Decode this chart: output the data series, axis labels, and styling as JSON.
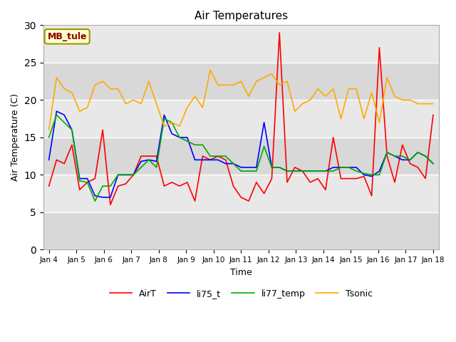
{
  "title": "Air Temperatures",
  "xlabel": "Time",
  "ylabel": "Air Temperature (C)",
  "ylim": [
    0,
    30
  ],
  "yticks": [
    0,
    5,
    10,
    15,
    20,
    25,
    30
  ],
  "annotation": "MB_tule",
  "plot_bg": "#e8e8e8",
  "fig_bg": "#ffffff",
  "x_labels": [
    "Jan 4",
    "Jan 5",
    "Jan 6",
    "Jan 7",
    "Jan 8",
    "Jan 9",
    "Jan 10",
    "Jan 11",
    "Jan 12",
    "Jan 13",
    "Jan 14",
    "Jan 15",
    "Jan 16",
    "Jan 17",
    "Jan 18"
  ],
  "AirT": [
    8.5,
    12.0,
    11.5,
    14.0,
    8.0,
    9.0,
    9.5,
    16.0,
    6.0,
    8.5,
    8.8,
    10.0,
    12.5,
    12.5,
    12.5,
    8.5,
    9.0,
    8.5,
    9.0,
    6.5,
    12.5,
    12.0,
    12.5,
    12.0,
    8.5,
    7.0,
    6.5,
    9.0,
    7.5,
    9.5,
    29.0,
    9.0,
    11.0,
    10.5,
    9.0,
    9.5,
    8.0,
    15.0,
    9.5,
    9.5,
    9.5,
    9.8,
    7.2,
    27.0,
    12.5,
    9.0,
    14.0,
    11.5,
    11.0,
    9.5,
    18.0
  ],
  "li75_t": [
    12.0,
    18.5,
    18.0,
    16.0,
    9.5,
    9.5,
    7.2,
    7.0,
    7.0,
    10.0,
    10.0,
    10.0,
    11.8,
    12.0,
    11.8,
    18.0,
    15.5,
    15.0,
    15.0,
    12.0,
    12.0,
    12.0,
    12.0,
    11.5,
    11.5,
    11.0,
    11.0,
    11.0,
    17.0,
    11.0,
    11.0,
    10.5,
    10.5,
    10.5,
    10.5,
    10.5,
    10.5,
    11.0,
    11.0,
    11.0,
    11.0,
    10.0,
    9.8,
    10.5,
    13.0,
    12.5,
    12.0,
    12.0,
    13.0,
    12.5,
    11.5
  ],
  "li77_temp": [
    15.0,
    18.0,
    17.0,
    16.0,
    9.2,
    9.0,
    6.5,
    8.5,
    8.5,
    10.0,
    10.0,
    10.0,
    11.0,
    12.0,
    11.0,
    17.5,
    17.0,
    15.0,
    14.5,
    14.0,
    14.0,
    12.5,
    12.5,
    12.5,
    11.5,
    10.5,
    10.5,
    10.5,
    13.8,
    11.0,
    11.0,
    10.5,
    10.5,
    10.5,
    10.5,
    10.5,
    10.5,
    10.5,
    11.0,
    11.0,
    10.5,
    10.2,
    10.0,
    10.0,
    13.0,
    12.5,
    12.5,
    12.0,
    13.0,
    12.5,
    11.5
  ],
  "Tsonic": [
    16.0,
    23.0,
    21.5,
    21.0,
    18.5,
    19.0,
    22.0,
    22.5,
    21.5,
    21.5,
    19.5,
    20.0,
    19.5,
    22.5,
    19.5,
    16.5,
    17.0,
    16.5,
    19.0,
    20.5,
    19.0,
    24.0,
    22.0,
    22.0,
    22.0,
    22.5,
    20.5,
    22.5,
    23.0,
    23.5,
    22.0,
    22.5,
    18.5,
    19.5,
    20.0,
    21.5,
    20.5,
    21.5,
    17.5,
    21.5,
    21.5,
    17.5,
    21.0,
    17.0,
    23.0,
    20.5,
    20.0,
    20.0,
    19.5,
    19.5,
    19.5
  ],
  "line_colors": {
    "AirT": "#ff0000",
    "li75_t": "#0000ff",
    "li77_temp": "#00aa00",
    "Tsonic": "#ffaa00"
  },
  "linewidth": 1.2,
  "band_colors": [
    "#d8d8d8",
    "#e8e8e8"
  ]
}
